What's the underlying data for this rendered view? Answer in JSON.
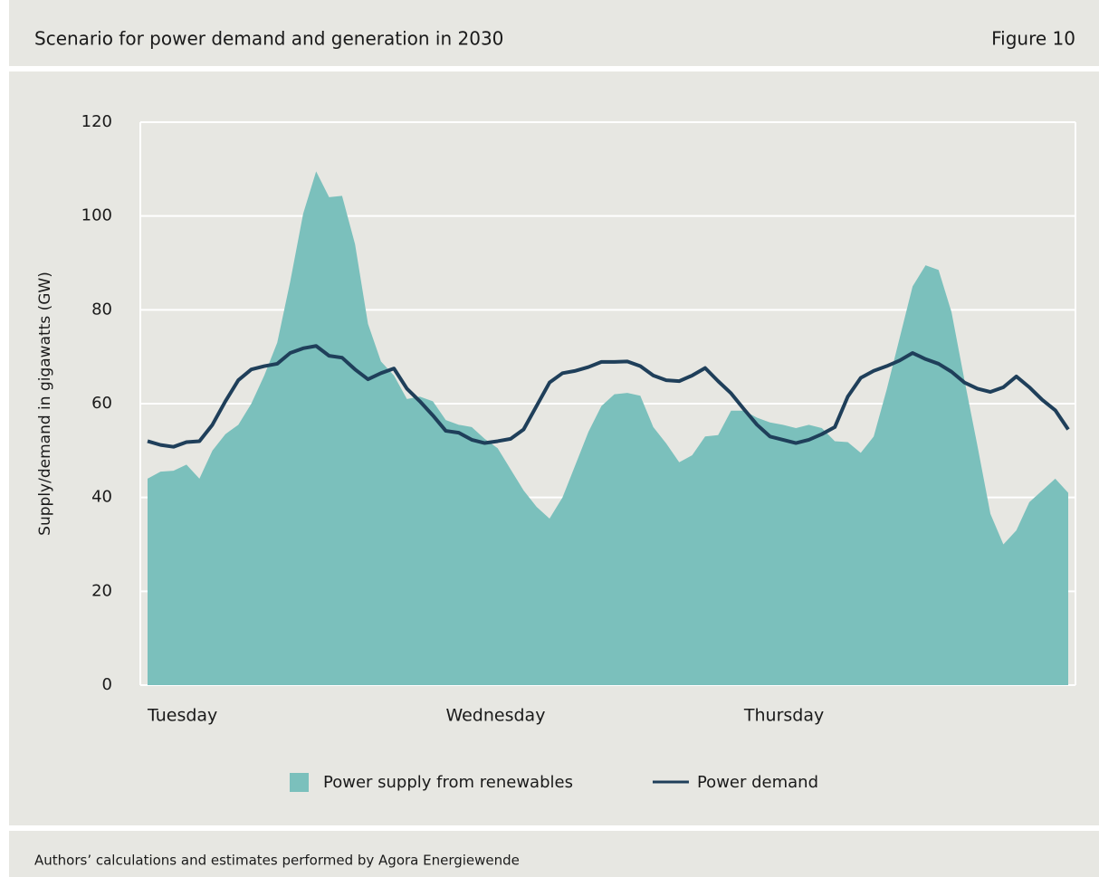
{
  "header": {
    "title": "Scenario for power demand and generation in 2030",
    "figure": "Figure 10"
  },
  "footer": {
    "source": "Authors’ calculations and estimates performed by Agora Energiewende"
  },
  "chart_data": {
    "type": "area_line",
    "ylabel": "Supply/demand in gigawatts (GW)",
    "categories": [
      "Tuesday",
      null,
      null,
      null,
      null,
      null,
      null,
      null,
      null,
      null,
      null,
      null,
      null,
      null,
      null,
      null,
      null,
      null,
      null,
      null,
      null,
      null,
      null,
      "Wednesday",
      null,
      null,
      null,
      null,
      null,
      null,
      null,
      null,
      null,
      null,
      null,
      null,
      null,
      null,
      null,
      null,
      null,
      null,
      null,
      null,
      null,
      null,
      "Thursday",
      null,
      null,
      null,
      null,
      null,
      null,
      null,
      null,
      null,
      null,
      null,
      null,
      null,
      null,
      null,
      null,
      null,
      null,
      null,
      null,
      null,
      null,
      null,
      null,
      null
    ],
    "ylim": [
      0,
      120
    ],
    "yticks": [
      0,
      20,
      40,
      60,
      80,
      100,
      120
    ],
    "grid": true,
    "legend": "bottom",
    "series": [
      {
        "name": "Power supply from renewables",
        "kind": "area",
        "color": "#7bc0bc",
        "values": [
          44,
          45.5,
          45.7,
          47,
          44,
          50,
          53.5,
          55.5,
          60,
          66,
          73,
          86,
          100.5,
          109.5,
          104,
          104.3,
          94,
          77,
          69,
          66,
          61,
          61.5,
          60.5,
          56.5,
          55.5,
          55,
          52.5,
          50.5,
          46,
          41.5,
          38,
          35.5,
          40,
          47,
          54,
          59.5,
          62,
          62.3,
          61.7,
          55,
          51.5,
          47.5,
          49,
          53,
          53.3,
          58.5,
          58.5,
          57,
          56,
          55.5,
          54.8,
          55.5,
          54.8,
          52,
          51.8,
          49.5,
          53,
          63,
          74,
          85,
          89.5,
          88.5,
          79.5,
          65,
          51,
          36.5,
          30,
          33,
          39,
          41.5,
          44,
          41
        ]
      },
      {
        "name": "Power demand",
        "kind": "line",
        "color": "#1f3f5a",
        "values": [
          52,
          51.2,
          50.8,
          51.8,
          52,
          55.5,
          60.5,
          65,
          67.3,
          68,
          68.5,
          70.8,
          71.8,
          72.3,
          70.2,
          69.8,
          67.3,
          65.2,
          66.5,
          67.5,
          63.2,
          60.5,
          57.5,
          54.2,
          53.8,
          52.3,
          51.6,
          52,
          52.5,
          54.5,
          59.5,
          64.5,
          66.5,
          67,
          67.8,
          68.9,
          68.9,
          69,
          68,
          66,
          65,
          64.8,
          66,
          67.6,
          64.8,
          62.2,
          58.8,
          55.5,
          53,
          52.3,
          51.6,
          52.3,
          53.5,
          55,
          61.5,
          65.5,
          67,
          68,
          69.2,
          70.8,
          69.5,
          68.5,
          66.8,
          64.5,
          63.2,
          62.5,
          63.5,
          65.8,
          63.5,
          60.8,
          58.6,
          54.5
        ]
      }
    ]
  }
}
